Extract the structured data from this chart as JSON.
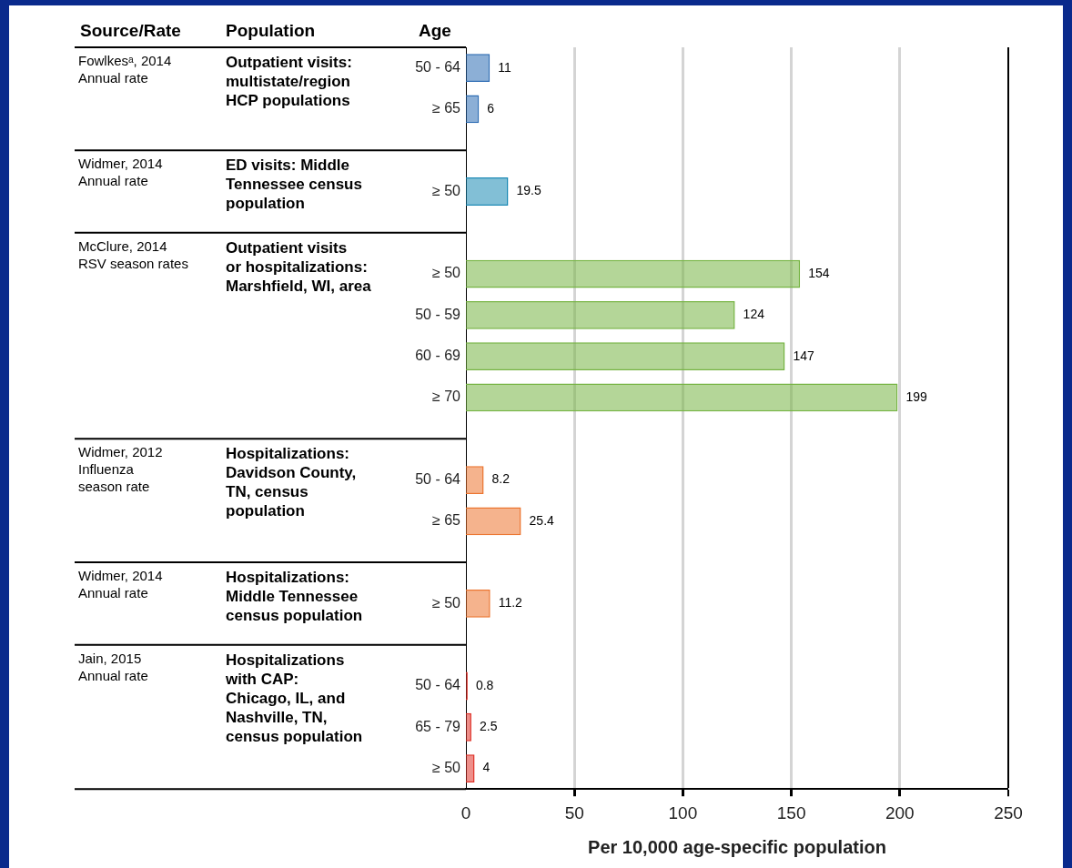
{
  "chart_data": {
    "type": "bar",
    "orientation": "horizontal",
    "xlabel": "Per 10,000 age-specific population",
    "categories": [
      "50 - 64",
      "≥ 65",
      null,
      "≥ 50",
      null,
      "≥ 50",
      "50 - 59",
      "60 - 69",
      "≥ 70",
      null,
      "50 - 64",
      "≥ 65",
      null,
      "≥ 50",
      null,
      "50 - 64",
      "65 - 79",
      "≥ 50"
    ],
    "values": [
      11,
      6,
      null,
      19.5,
      null,
      154,
      124,
      147,
      199,
      null,
      8.2,
      25.4,
      null,
      11.2,
      null,
      0.8,
      2.5,
      4
    ],
    "colors": [
      "#2e6db4",
      "#2e6db4",
      null,
      "#1c8ab5",
      null,
      "#76b443",
      "#76b443",
      "#76b443",
      "#76b443",
      null,
      "#ec7530",
      "#ec7530",
      null,
      "#ec7530",
      null,
      "#e0332a",
      "#e0332a",
      "#e0332a"
    ],
    "xlim": [
      0,
      250
    ],
    "xticks": [
      0,
      50,
      100,
      150,
      200,
      250
    ],
    "grid": "x",
    "data_labels": true,
    "annotations": [
      "Source/Rate",
      "Population",
      "Age",
      "Fowlkesᵃ, 2014\nAnnual rate",
      "Outpatient visits:\nmultistate/region\nHCP populations",
      "Widmer, 2014\nAnnual rate",
      "ED visits: Middle\nTennessee census\npopulation",
      "McClure, 2014\nRSV season rates",
      "Outpatient visits\nor hospitalizations:\nMarshfield, WI, area",
      "Widmer, 2012\nInfluenza\nseason rate",
      "Hospitalizations:\nDavidson County,\nTN, census\npopulation",
      "Widmer, 2014\nAnnual rate",
      "Hospitalizations:\nMiddle Tennessee\ncensus population",
      "Jain, 2015\nAnnual rate",
      "Hospitalizations\nwith CAP:\nChicago, IL, and\nNashville, TN,\ncensus population"
    ]
  }
}
